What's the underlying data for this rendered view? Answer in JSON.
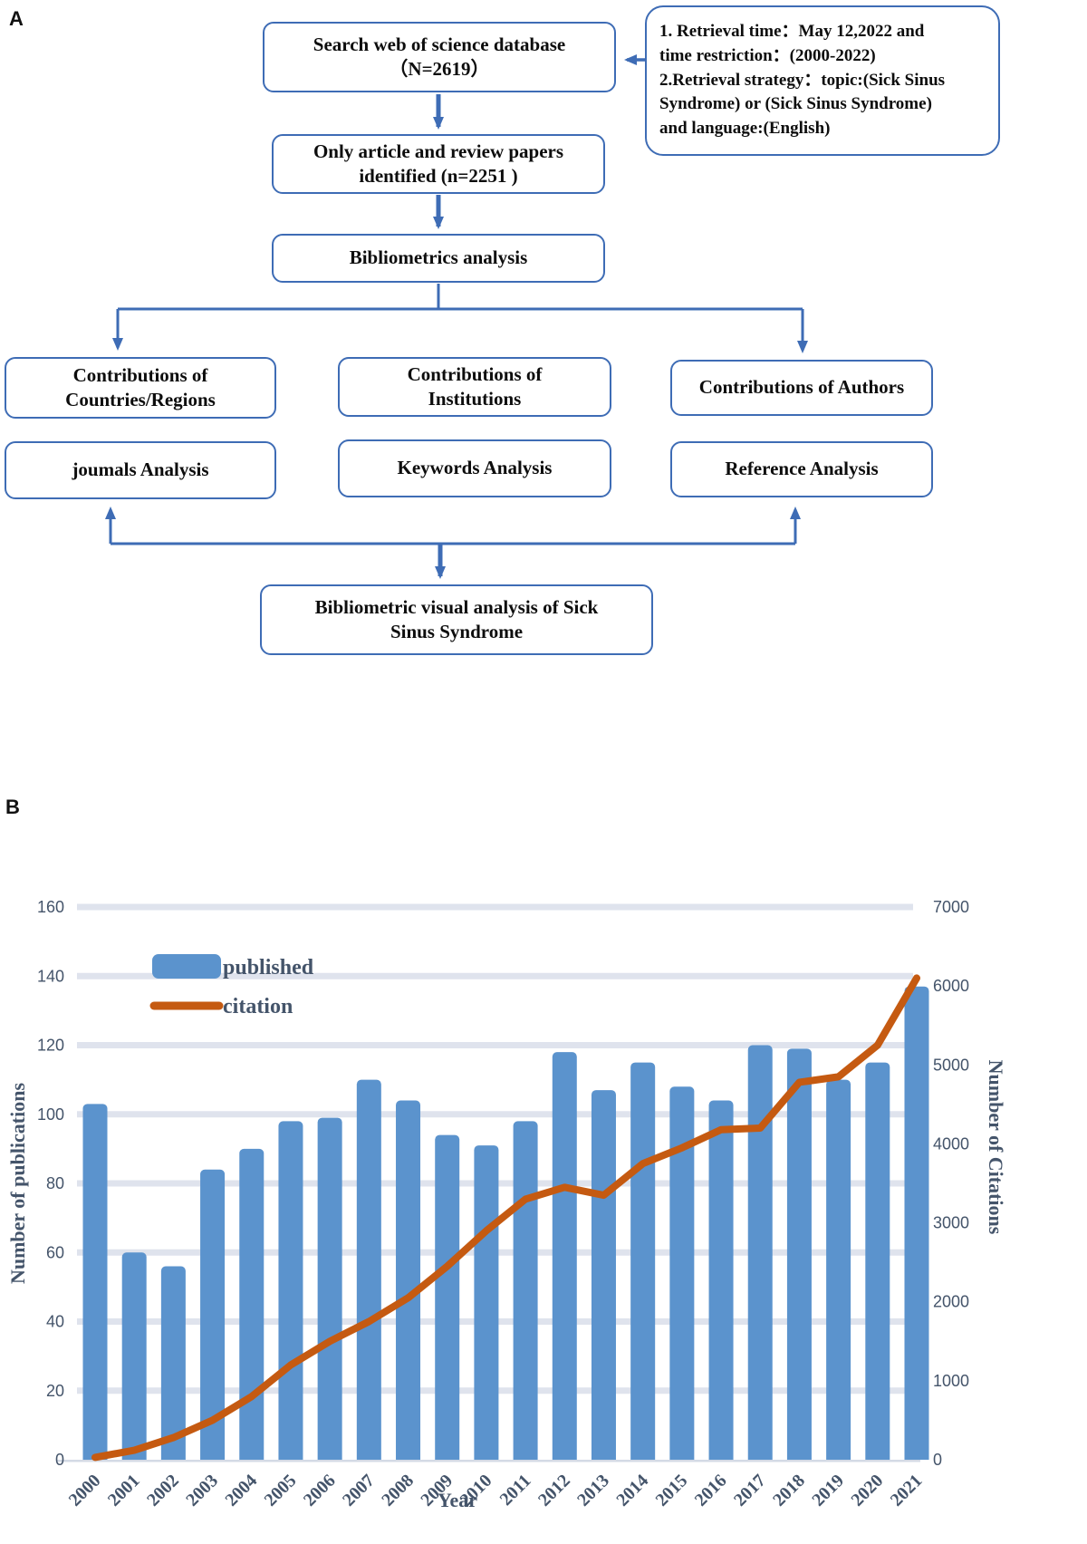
{
  "figure": {
    "panel_a_label": "A",
    "panel_b_label": "B"
  },
  "flowchart": {
    "search_box": "Search web of science database\n（N=2619）",
    "retrieval_box": "1. Retrieval time：May 12,2022 and\ntime restriction：(2000-2022)\n2.Retrieval strategy：topic:(Sick Sinus\nSyndrome) or (Sick Sinus Syndrome)\nand language:(English)",
    "identified_box": "Only article and review papers\nidentified (n=2251 )",
    "bibliometrics_box": "Bibliometrics analysis",
    "countries_box": "Contributions of\nCountries/Regions",
    "institutions_box": "Contributions of\nInstitutions",
    "authors_box": "Contributions of Authors",
    "journals_box": "joumals Analysis",
    "keywords_box": "Keywords Analysis",
    "reference_box": "Reference Analysis",
    "final_box": "Bibliometric visual analysis of Sick\nSinus Syndrome"
  },
  "chart_data": {
    "type": "bar+line",
    "categories": [
      "2000",
      "2001",
      "2002",
      "2003",
      "2004",
      "2005",
      "2006",
      "2007",
      "2008",
      "2009",
      "2010",
      "2011",
      "2012",
      "2013",
      "2014",
      "2015",
      "2016",
      "2017",
      "2018",
      "2019",
      "2020",
      "2021"
    ],
    "series": [
      {
        "name": "published",
        "type": "bar",
        "axis": "left",
        "values": [
          103,
          60,
          56,
          84,
          90,
          98,
          99,
          110,
          104,
          94,
          91,
          98,
          118,
          107,
          115,
          108,
          104,
          120,
          119,
          110,
          115,
          137
        ]
      },
      {
        "name": "citation",
        "type": "line",
        "axis": "right",
        "values": [
          30,
          120,
          280,
          500,
          800,
          1200,
          1500,
          1750,
          2050,
          2450,
          2900,
          3300,
          3450,
          3350,
          3750,
          3950,
          4180,
          4200,
          4780,
          4850,
          5250,
          6100
        ]
      }
    ],
    "left_axis": {
      "label": "Number of publications",
      "min": 0,
      "max": 160,
      "step": 20
    },
    "right_axis": {
      "label": "Number of Citations",
      "min": 0,
      "max": 7000,
      "step": 1000
    },
    "xlabel": "Year",
    "legend": [
      "published",
      "citation"
    ],
    "legend_position": "upper-left-inside",
    "grid": true
  },
  "colors": {
    "bar": "#5b93cd",
    "line": "#c55a11",
    "grid": "#dfe3ed",
    "axis_text": "#44546a",
    "flow_border": "#3e6cb5",
    "flow_arrow": "#3e6cb5",
    "axis_line": "#d4dae5"
  }
}
